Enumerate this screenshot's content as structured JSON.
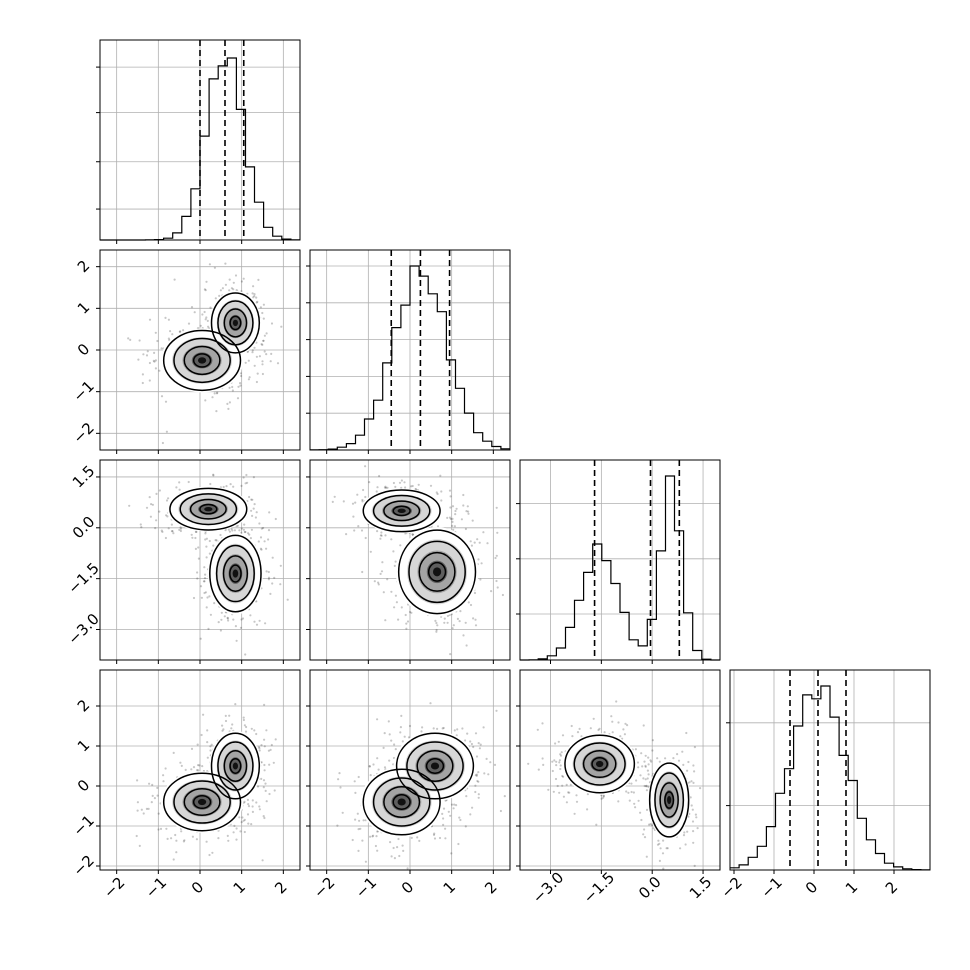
{
  "chart_data": {
    "type": "corner",
    "grid": true,
    "parameters": [
      {
        "range": [
          -2.4,
          2.4
        ],
        "ticks": [
          -2,
          -1,
          0,
          1,
          2
        ],
        "tick_labels": [
          "−2",
          "−1",
          "0",
          "1",
          "2"
        ],
        "hist": {
          "mean": 0.6,
          "sd": 0.45,
          "peak_fraction": 0.91,
          "quantiles": [
            0.0,
            0.6,
            1.05
          ]
        },
        "hist_y_ticks": [
          0.17,
          0.43,
          0.7,
          0.95
        ]
      },
      {
        "range": [
          -2.4,
          2.4
        ],
        "ticks": [
          -2,
          -1,
          0,
          1,
          2
        ],
        "tick_labels": [
          "−2",
          "−1",
          "0",
          "1",
          "2"
        ],
        "hist": {
          "mean": 0.25,
          "sd": 0.65,
          "peak_fraction": 0.92,
          "quantiles": [
            -0.45,
            0.25,
            0.95
          ]
        },
        "hist_y_ticks": [
          0.2,
          0.4,
          0.6,
          0.8,
          1.0
        ]
      },
      {
        "range": [
          -3.9,
          2.0
        ],
        "ticks": [
          -3.0,
          -1.5,
          0.0,
          1.5
        ],
        "tick_labels": [
          "−3.0",
          "−1.5",
          "0.0",
          "1.5"
        ],
        "hist": {
          "components": [
            {
              "mean": -1.55,
              "sd": 0.55,
              "weight": 0.52
            },
            {
              "mean": 0.55,
              "sd": 0.32,
              "weight": 0.48
            }
          ],
          "quantiles": [
            -1.7,
            -0.05,
            0.8
          ]
        },
        "hist_y_ticks": [
          0.25,
          0.55,
          0.85
        ]
      },
      {
        "range": [
          -2.1,
          2.9
        ],
        "ticks": [
          -2,
          -1,
          0,
          1,
          2
        ],
        "tick_labels": [
          "−2",
          "−1",
          "0",
          "1",
          "2"
        ],
        "hist": {
          "mean": 0.1,
          "sd": 0.7,
          "peak_fraction": 0.92,
          "quantiles": [
            -0.6,
            0.1,
            0.8
          ]
        },
        "hist_y_ticks": [
          0.35,
          0.8
        ]
      }
    ],
    "pairs": [
      {
        "x": 0,
        "y": 1,
        "blobs": [
          {
            "cx": 0.85,
            "cy": 0.65,
            "sx": 0.28,
            "sy": 0.35
          },
          {
            "cx": 0.05,
            "cy": -0.25,
            "sx": 0.45,
            "sy": 0.35
          }
        ]
      },
      {
        "x": 0,
        "y": 2,
        "blobs": [
          {
            "cx": 0.2,
            "cy": 0.55,
            "sx": 0.45,
            "sy": 0.3
          },
          {
            "cx": 0.85,
            "cy": -1.35,
            "sx": 0.3,
            "sy": 0.55
          }
        ]
      },
      {
        "x": 1,
        "y": 2,
        "blobs": [
          {
            "cx": -0.2,
            "cy": 0.5,
            "sx": 0.45,
            "sy": 0.3
          },
          {
            "cx": 0.65,
            "cy": -1.3,
            "sx": 0.45,
            "sy": 0.6
          }
        ]
      },
      {
        "x": 0,
        "y": 3,
        "blobs": [
          {
            "cx": 0.85,
            "cy": 0.5,
            "sx": 0.28,
            "sy": 0.4
          },
          {
            "cx": 0.05,
            "cy": -0.4,
            "sx": 0.45,
            "sy": 0.35
          }
        ]
      },
      {
        "x": 1,
        "y": 3,
        "blobs": [
          {
            "cx": -0.2,
            "cy": -0.4,
            "sx": 0.45,
            "sy": 0.4
          },
          {
            "cx": 0.6,
            "cy": 0.5,
            "sx": 0.45,
            "sy": 0.4
          }
        ]
      },
      {
        "x": 2,
        "y": 3,
        "blobs": [
          {
            "cx": -1.55,
            "cy": 0.55,
            "sx": 0.5,
            "sy": 0.35
          },
          {
            "cx": 0.5,
            "cy": -0.35,
            "sx": 0.28,
            "sy": 0.45
          }
        ]
      }
    ]
  }
}
